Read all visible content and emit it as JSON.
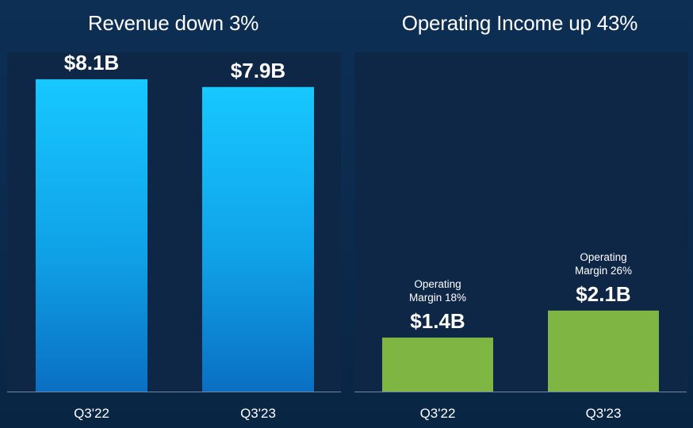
{
  "chart_data": [
    {
      "type": "bar",
      "title": "Revenue down 3%",
      "categories": [
        "Q3'22",
        "Q3'23"
      ],
      "values": [
        8.1,
        7.9
      ],
      "value_labels": [
        "$8.1B",
        "$7.9B"
      ],
      "units": "$B",
      "ylim": [
        0,
        8.8
      ],
      "xlabel": "",
      "ylabel": "",
      "grid": false,
      "color_top": "#17c8ff",
      "color_bottom": "#0a6fc2"
    },
    {
      "type": "bar",
      "title": "Operating Income up 43%",
      "categories": [
        "Q3'22",
        "Q3'23"
      ],
      "values": [
        1.4,
        2.1
      ],
      "value_labels": [
        "$1.4B",
        "$2.1B"
      ],
      "annotations": [
        [
          "Operating",
          "Margin 18%"
        ],
        [
          "Operating",
          "Margin 26%"
        ]
      ],
      "units": "$B",
      "ylim": [
        0,
        8.8
      ],
      "xlabel": "",
      "ylabel": "",
      "grid": false,
      "color": "#7fb543"
    }
  ]
}
